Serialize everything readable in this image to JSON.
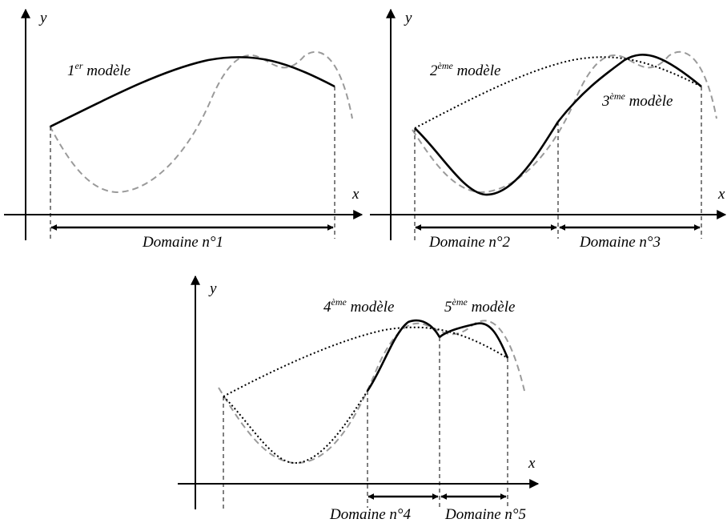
{
  "panels": [
    {
      "id": "panel-1",
      "x_label": "x",
      "y_label": "y",
      "models": [
        {
          "num": "1",
          "sup": "er",
          "word": " modèle"
        }
      ],
      "domains": [
        "Domaine n°1"
      ]
    },
    {
      "id": "panel-2",
      "x_label": "x",
      "y_label": "y",
      "models": [
        {
          "num": "2",
          "sup": "ème",
          "word": " modèle"
        },
        {
          "num": "3",
          "sup": "ème",
          "word": " modèle"
        }
      ],
      "domains": [
        "Domaine n°2",
        "Domaine n°3"
      ]
    },
    {
      "id": "panel-3",
      "x_label": "x",
      "y_label": "y",
      "models": [
        {
          "num": "4",
          "sup": "ème",
          "word": " modèle"
        },
        {
          "num": "5",
          "sup": "ème",
          "word": " modèle"
        }
      ],
      "domains": [
        "Domaine n°4",
        "Domaine n°5"
      ]
    }
  ],
  "colors": {
    "ink": "#000000",
    "reference_curve": "#9a9a9a"
  }
}
